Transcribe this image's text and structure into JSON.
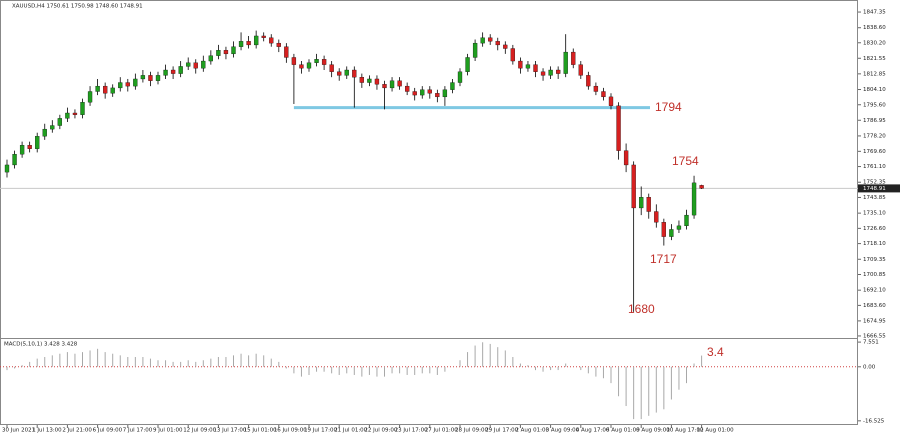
{
  "chart_data": {
    "type": "candlestick",
    "header": "XAUUSD,H4  1750.61 1750.98 1748.60 1748.91",
    "categories": [
      "30 Jun 2021",
      null,
      null,
      null,
      "1 Jul 13:00",
      null,
      null,
      null,
      "2 Jul 21:00",
      null,
      null,
      null,
      "6 Jul 09:00",
      null,
      null,
      null,
      "7 Jul 17:00",
      null,
      null,
      null,
      "9 Jul 01:00",
      null,
      null,
      null,
      "12 Jul 09:00",
      null,
      null,
      null,
      "13 Jul 17:00",
      null,
      null,
      null,
      "15 Jul 01:00",
      null,
      null,
      null,
      "16 Jul 09:00",
      null,
      null,
      null,
      "19 Jul 17:00",
      null,
      null,
      null,
      "21 Jul 01:00",
      null,
      null,
      null,
      "22 Jul 09:00",
      null,
      null,
      null,
      "23 Jul 17:00",
      null,
      null,
      null,
      "27 Jul 01:00",
      null,
      null,
      null,
      "28 Jul 09:00",
      null,
      null,
      null,
      "29 Jul 17:00",
      null,
      null,
      null,
      "2 Aug 01:00",
      null,
      null,
      null,
      "3 Aug 09:00",
      null,
      null,
      null,
      "4 Aug 17:00",
      null,
      null,
      null,
      "6 Aug 01:00",
      null,
      null,
      null,
      "9 Aug 09:00",
      null,
      null,
      null,
      "10 Aug 17:00",
      null,
      null,
      null,
      "12 Aug 01:00"
    ],
    "candles": [
      [
        1758,
        1765,
        1755,
        1762
      ],
      [
        1762,
        1770,
        1760,
        1768
      ],
      [
        1768,
        1775,
        1766,
        1773
      ],
      [
        1773,
        1775,
        1769,
        1771
      ],
      [
        1771,
        1780,
        1769,
        1778
      ],
      [
        1778,
        1785,
        1776,
        1782
      ],
      [
        1782,
        1787,
        1780,
        1784
      ],
      [
        1784,
        1790,
        1782,
        1788
      ],
      [
        1788,
        1794,
        1786,
        1791
      ],
      [
        1791,
        1793,
        1788,
        1790
      ],
      [
        1790,
        1799,
        1788,
        1797
      ],
      [
        1797,
        1806,
        1795,
        1803
      ],
      [
        1803,
        1810,
        1801,
        1806
      ],
      [
        1806,
        1808,
        1799,
        1802
      ],
      [
        1802,
        1807,
        1800,
        1805
      ],
      [
        1805,
        1811,
        1803,
        1808
      ],
      [
        1808,
        1810,
        1803,
        1806
      ],
      [
        1806,
        1813,
        1804,
        1810
      ],
      [
        1810,
        1815,
        1808,
        1812
      ],
      [
        1812,
        1814,
        1806,
        1809
      ],
      [
        1809,
        1814,
        1807,
        1812
      ],
      [
        1812,
        1818,
        1810,
        1815
      ],
      [
        1815,
        1817,
        1810,
        1813
      ],
      [
        1813,
        1820,
        1811,
        1817
      ],
      [
        1817,
        1822,
        1815,
        1819
      ],
      [
        1819,
        1821,
        1813,
        1816
      ],
      [
        1816,
        1823,
        1814,
        1820
      ],
      [
        1820,
        1826,
        1818,
        1823
      ],
      [
        1823,
        1829,
        1821,
        1826
      ],
      [
        1826,
        1828,
        1821,
        1824
      ],
      [
        1824,
        1831,
        1822,
        1828
      ],
      [
        1828,
        1836,
        1826,
        1831
      ],
      [
        1831,
        1834,
        1827,
        1829
      ],
      [
        1829,
        1837,
        1827,
        1834
      ],
      [
        1834,
        1836,
        1831,
        1833
      ],
      [
        1833,
        1835,
        1828,
        1830
      ],
      [
        1830,
        1832,
        1825,
        1828
      ],
      [
        1828,
        1830,
        1819,
        1822
      ],
      [
        1822,
        1824,
        1796,
        1818
      ],
      [
        1818,
        1820,
        1813,
        1816
      ],
      [
        1816,
        1821,
        1814,
        1819
      ],
      [
        1819,
        1824,
        1817,
        1821
      ],
      [
        1821,
        1823,
        1815,
        1818
      ],
      [
        1818,
        1820,
        1811,
        1814
      ],
      [
        1814,
        1816,
        1809,
        1812
      ],
      [
        1812,
        1817,
        1810,
        1815
      ],
      [
        1815,
        1817,
        1794,
        1811
      ],
      [
        1811,
        1813,
        1805,
        1808
      ],
      [
        1808,
        1812,
        1806,
        1810
      ],
      [
        1810,
        1812,
        1804,
        1807
      ],
      [
        1807,
        1809,
        1793,
        1805
      ],
      [
        1805,
        1811,
        1803,
        1809
      ],
      [
        1809,
        1811,
        1804,
        1806
      ],
      [
        1806,
        1808,
        1801,
        1803
      ],
      [
        1803,
        1805,
        1798,
        1801
      ],
      [
        1801,
        1806,
        1799,
        1804
      ],
      [
        1804,
        1806,
        1799,
        1802
      ],
      [
        1802,
        1804,
        1797,
        1800
      ],
      [
        1800,
        1806,
        1795,
        1804
      ],
      [
        1804,
        1810,
        1802,
        1808
      ],
      [
        1808,
        1816,
        1806,
        1814
      ],
      [
        1814,
        1824,
        1812,
        1822
      ],
      [
        1822,
        1832,
        1820,
        1830
      ],
      [
        1830,
        1836,
        1828,
        1833
      ],
      [
        1833,
        1835,
        1829,
        1831
      ],
      [
        1831,
        1833,
        1826,
        1829
      ],
      [
        1829,
        1831,
        1824,
        1827
      ],
      [
        1827,
        1829,
        1818,
        1820
      ],
      [
        1820,
        1822,
        1813,
        1816
      ],
      [
        1816,
        1820,
        1814,
        1818
      ],
      [
        1818,
        1820,
        1811,
        1814
      ],
      [
        1814,
        1816,
        1809,
        1812
      ],
      [
        1812,
        1817,
        1810,
        1815
      ],
      [
        1815,
        1817,
        1810,
        1813
      ],
      [
        1813,
        1835,
        1811,
        1825
      ],
      [
        1825,
        1827,
        1816,
        1818
      ],
      [
        1818,
        1820,
        1810,
        1812
      ],
      [
        1812,
        1814,
        1804,
        1806
      ],
      [
        1806,
        1808,
        1801,
        1803
      ],
      [
        1803,
        1805,
        1798,
        1800
      ],
      [
        1800,
        1802,
        1793,
        1795
      ],
      [
        1795,
        1797,
        1765,
        1770
      ],
      [
        1770,
        1774,
        1758,
        1762
      ],
      [
        1762,
        1764,
        1680,
        1738
      ],
      [
        1738,
        1750,
        1734,
        1744
      ],
      [
        1744,
        1746,
        1732,
        1736
      ],
      [
        1736,
        1740,
        1727,
        1730
      ],
      [
        1730,
        1732,
        1717,
        1722
      ],
      [
        1722,
        1729,
        1720,
        1726
      ],
      [
        1726,
        1731,
        1724,
        1728
      ],
      [
        1728,
        1737,
        1726,
        1734
      ],
      [
        1734,
        1756,
        1732,
        1752
      ],
      [
        1750.61,
        1750.98,
        1748.6,
        1748.91
      ]
    ],
    "up_color": "#1f9e1f",
    "down_color": "#d62020",
    "ylim": [
      1665.4,
      1852.4
    ],
    "yticks": [
      1847.35,
      {
        "value": 1838.6,
        "label": "1838.60"
      },
      {
        "value": 1830.2,
        "label": "1830.20"
      },
      1821.55,
      1812.85,
      {
        "value": 1804.1,
        "label": "1804.10"
      },
      {
        "value": 1795.6,
        "label": "1795.60"
      },
      1786.95,
      {
        "value": 1778.2,
        "label": "1778.20"
      },
      {
        "value": 1769.6,
        "label": "1769.60"
      },
      {
        "value": 1761.1,
        "label": "1761.10"
      },
      1752.35,
      1743.85,
      {
        "value": 1735.1,
        "label": "1735.10"
      },
      {
        "value": 1726.6,
        "label": "1726.60"
      },
      {
        "value": 1718.1,
        "label": "1718.10"
      },
      1709.35,
      1700.85,
      {
        "value": 1692.1,
        "label": "1692.10"
      },
      {
        "value": 1683.6,
        "label": "1683.60"
      },
      1674.95,
      1666.55
    ],
    "current_price": 1748.91,
    "support_level": 1794,
    "support_color": "#7ec8e3",
    "annotations": [
      "1794",
      "1754",
      "1717",
      "1680"
    ],
    "macd": {
      "title": "MACD(5,10,1) 3.428 3.428",
      "annotation": "3.4",
      "color": "#a8a8a8",
      "values": [
        -1,
        -0.5,
        0.5,
        1.5,
        2.5,
        3,
        3.5,
        4,
        4.5,
        4,
        4.5,
        5,
        5.5,
        4.5,
        4,
        3.5,
        3,
        3,
        3,
        2.5,
        2,
        2,
        1.5,
        1.5,
        2,
        1.5,
        2,
        2.5,
        3,
        3,
        3.5,
        4,
        3.5,
        4,
        3.5,
        2.5,
        1.5,
        -0.5,
        -2,
        -3,
        -2.5,
        -1.5,
        -1.5,
        -2,
        -2.5,
        -2,
        -2.5,
        -3,
        -2.5,
        -3,
        -3,
        -2,
        -2,
        -2.5,
        -2.5,
        -2,
        -2,
        -2.5,
        -1.5,
        0,
        2,
        4.5,
        6.5,
        7.5,
        7,
        6,
        5,
        3,
        1,
        0.5,
        -1,
        -1.5,
        -1,
        -1,
        1,
        0,
        -1,
        -2,
        -3,
        -3.5,
        -5,
        -9,
        -12,
        -16,
        -16,
        -15,
        -14,
        -13,
        -10,
        -7,
        -5,
        1,
        3.428
      ],
      "ylim": [
        -17.8,
        8.5
      ],
      "yticks": [
        7.551,
        {
          "value": 0,
          "label": "0.00"
        },
        -16.525
      ]
    }
  }
}
